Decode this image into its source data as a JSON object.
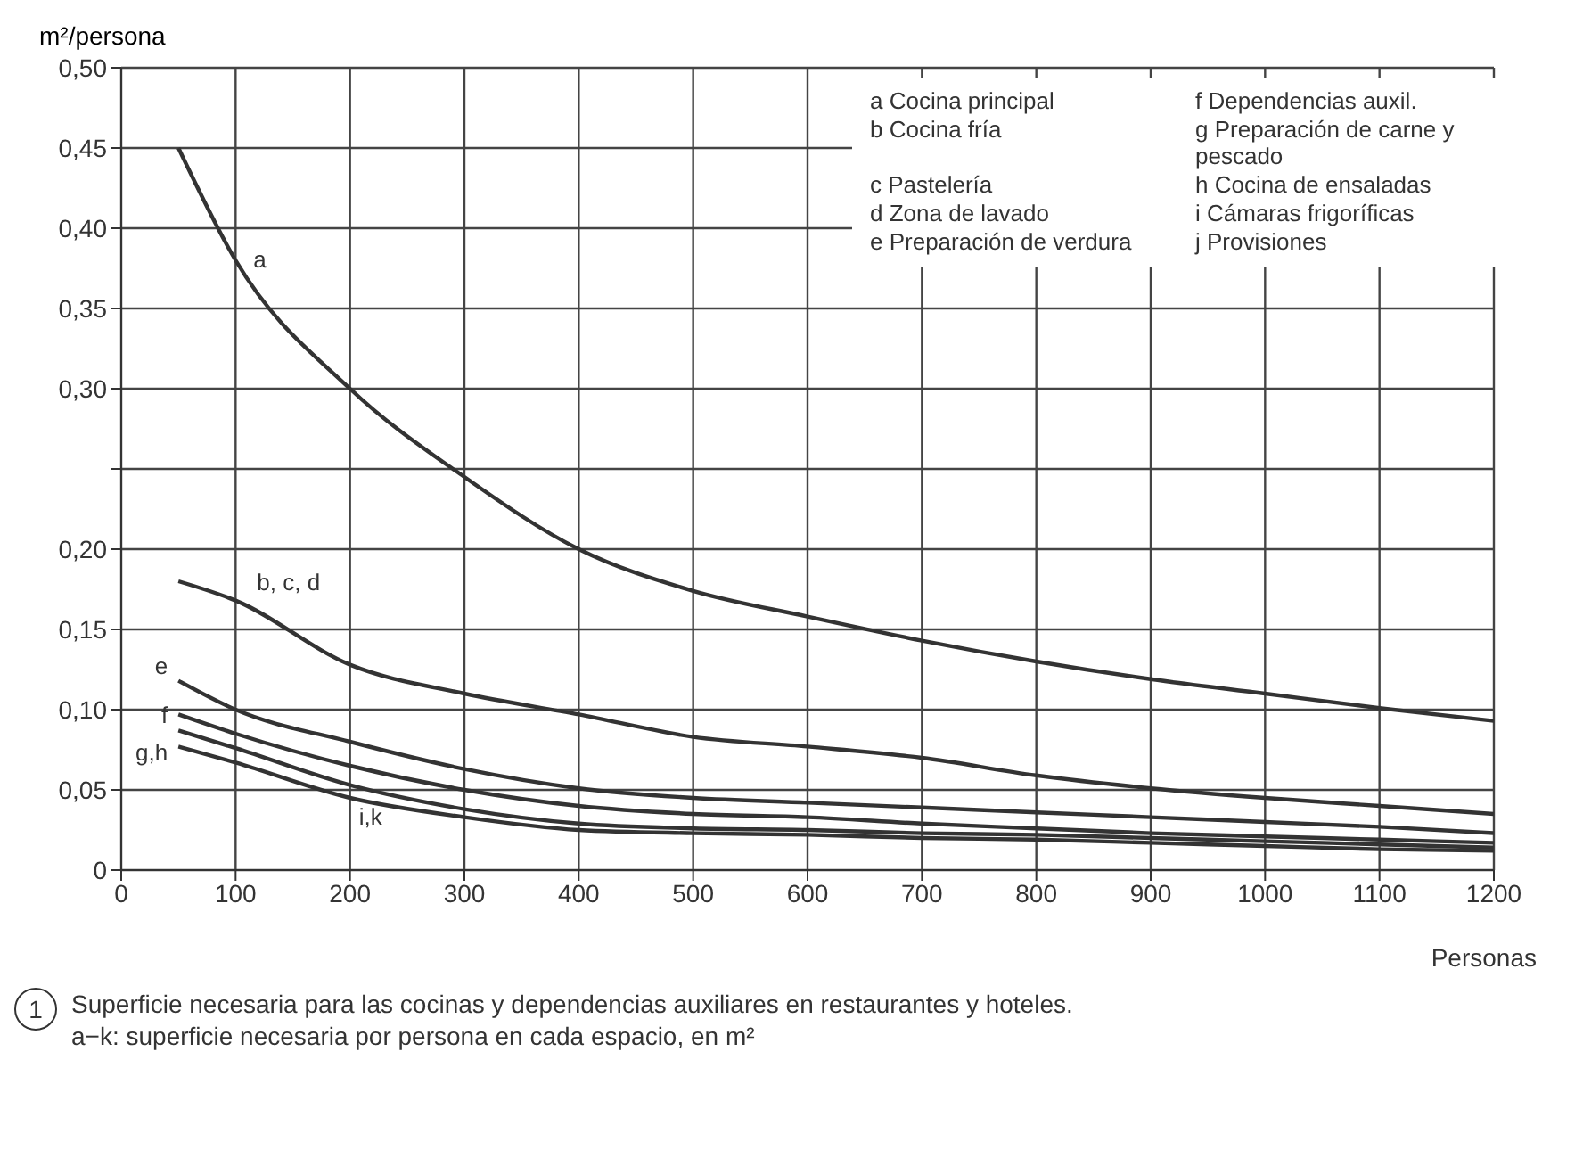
{
  "chart_data": {
    "type": "line",
    "ylabel": "m²/persona",
    "xlabel": "Personas",
    "x": [
      50,
      100,
      200,
      300,
      400,
      500,
      600,
      700,
      800,
      900,
      1000,
      1100,
      1200
    ],
    "series": [
      {
        "name": "a",
        "color": "#333333",
        "values": [
          0.45,
          0.38,
          0.3,
          0.245,
          0.2,
          0.174,
          0.158,
          0.143,
          0.13,
          0.119,
          0.11,
          0.101,
          0.093
        ]
      },
      {
        "name": "b, c, d",
        "color": "#333333",
        "values": [
          0.18,
          0.168,
          0.128,
          0.11,
          0.097,
          0.083,
          0.077,
          0.07,
          0.059,
          0.051,
          0.045,
          0.04,
          0.035
        ]
      },
      {
        "name": "e",
        "color": "#333333",
        "values": [
          0.118,
          0.1,
          0.08,
          0.063,
          0.051,
          0.045,
          0.042,
          0.039,
          0.036,
          0.033,
          0.03,
          0.027,
          0.023
        ]
      },
      {
        "name": "f",
        "color": "#333333",
        "values": [
          0.097,
          0.085,
          0.065,
          0.05,
          0.04,
          0.035,
          0.033,
          0.029,
          0.026,
          0.023,
          0.021,
          0.019,
          0.017
        ]
      },
      {
        "name": "g,h",
        "color": "#333333",
        "values": [
          0.087,
          0.076,
          0.053,
          0.038,
          0.029,
          0.026,
          0.025,
          0.023,
          0.022,
          0.02,
          0.018,
          0.016,
          0.014
        ]
      },
      {
        "name": "i,k",
        "color": "#333333",
        "values": [
          0.077,
          0.067,
          0.045,
          0.033,
          0.025,
          0.023,
          0.022,
          0.02,
          0.019,
          0.017,
          0.015,
          0.013,
          0.012
        ]
      }
    ],
    "xlim": [
      0,
      1200
    ],
    "xticks": [
      0,
      100,
      200,
      300,
      400,
      500,
      600,
      700,
      800,
      900,
      1000,
      1100,
      1200
    ],
    "ylim": [
      0,
      0.5
    ],
    "yticks": [
      0,
      {
        "value": 0.05,
        "label": "0,05"
      },
      {
        "value": 0.1,
        "label": "0,10"
      },
      {
        "value": 0.15,
        "label": "0,15"
      },
      {
        "value": 0.2,
        "label": "0,20"
      },
      {
        "value": 0.25,
        "label": null
      },
      {
        "value": 0.3,
        "label": "0,30"
      },
      {
        "value": 0.35,
        "label": "0,35"
      },
      {
        "value": 0.4,
        "label": "0,40"
      },
      {
        "value": 0.45,
        "label": "0,45"
      },
      {
        "value": 0.5,
        "label": "0,50"
      }
    ],
    "grid": true,
    "legend": false,
    "marker": "none",
    "line_style": "solid",
    "annotations": [
      "a Cocina principal",
      "b Cocina fría",
      "c Pastelería",
      "d Zona de lavado",
      "e Preparación de verdura",
      "f Dependencias auxil.",
      "g Preparación de carne y pescado",
      "h Cocina de ensaladas",
      "i Cámaras frigoríficas",
      "j Provisiones",
      "1",
      "Superficie necesaria para las cocinas y dependencias auxiliares en restaurantes y hoteles.",
      "a−k: superficie necesaria por persona en cada espacio, en m²"
    ]
  }
}
